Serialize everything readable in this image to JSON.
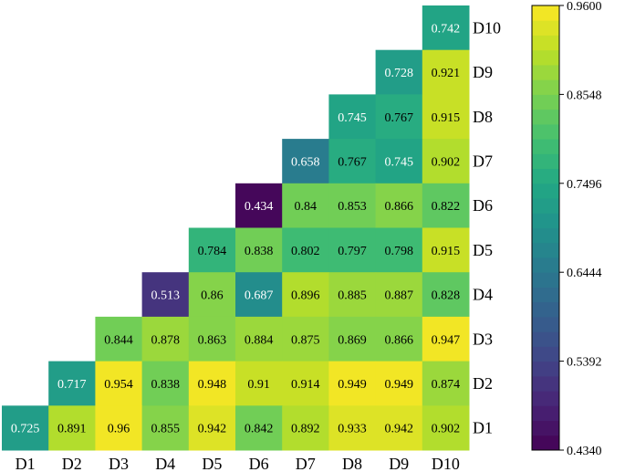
{
  "chart_data": {
    "type": "heatmap",
    "x_labels": [
      "D1",
      "D2",
      "D3",
      "D4",
      "D5",
      "D6",
      "D7",
      "D8",
      "D9",
      "D10"
    ],
    "y_labels": [
      "D1",
      "D2",
      "D3",
      "D4",
      "D5",
      "D6",
      "D7",
      "D8",
      "D9",
      "D10"
    ],
    "rows": [
      {
        "y": "D10",
        "values": [
          null,
          null,
          null,
          null,
          null,
          null,
          null,
          null,
          null,
          0.742
        ]
      },
      {
        "y": "D9",
        "values": [
          null,
          null,
          null,
          null,
          null,
          null,
          null,
          null,
          0.728,
          0.921
        ]
      },
      {
        "y": "D8",
        "values": [
          null,
          null,
          null,
          null,
          null,
          null,
          null,
          0.745,
          0.767,
          0.915
        ]
      },
      {
        "y": "D7",
        "values": [
          null,
          null,
          null,
          null,
          null,
          null,
          0.658,
          0.767,
          0.745,
          0.902
        ]
      },
      {
        "y": "D6",
        "values": [
          null,
          null,
          null,
          null,
          null,
          0.434,
          0.84,
          0.853,
          0.866,
          0.822
        ]
      },
      {
        "y": "D5",
        "values": [
          null,
          null,
          null,
          null,
          0.784,
          0.838,
          0.802,
          0.797,
          0.798,
          0.915
        ]
      },
      {
        "y": "D4",
        "values": [
          null,
          null,
          null,
          0.513,
          0.86,
          0.687,
          0.896,
          0.885,
          0.887,
          0.828
        ]
      },
      {
        "y": "D3",
        "values": [
          null,
          null,
          0.844,
          0.878,
          0.863,
          0.884,
          0.875,
          0.869,
          0.866,
          0.947
        ]
      },
      {
        "y": "D2",
        "values": [
          null,
          0.717,
          0.954,
          0.838,
          0.948,
          0.91,
          0.914,
          0.949,
          0.949,
          0.874
        ]
      },
      {
        "y": "D1",
        "values": [
          0.725,
          0.891,
          0.96,
          0.855,
          0.942,
          0.842,
          0.892,
          0.933,
          0.942,
          0.902
        ]
      }
    ],
    "colorbar": {
      "min": 0.434,
      "max": 0.96,
      "ticks": [
        "0.9600",
        "0.8548",
        "0.7496",
        "0.6444",
        "0.5392",
        "0.4340"
      ],
      "levels": 30,
      "colormap": "viridis"
    },
    "grid": false,
    "legend": "colorbar-right"
  }
}
